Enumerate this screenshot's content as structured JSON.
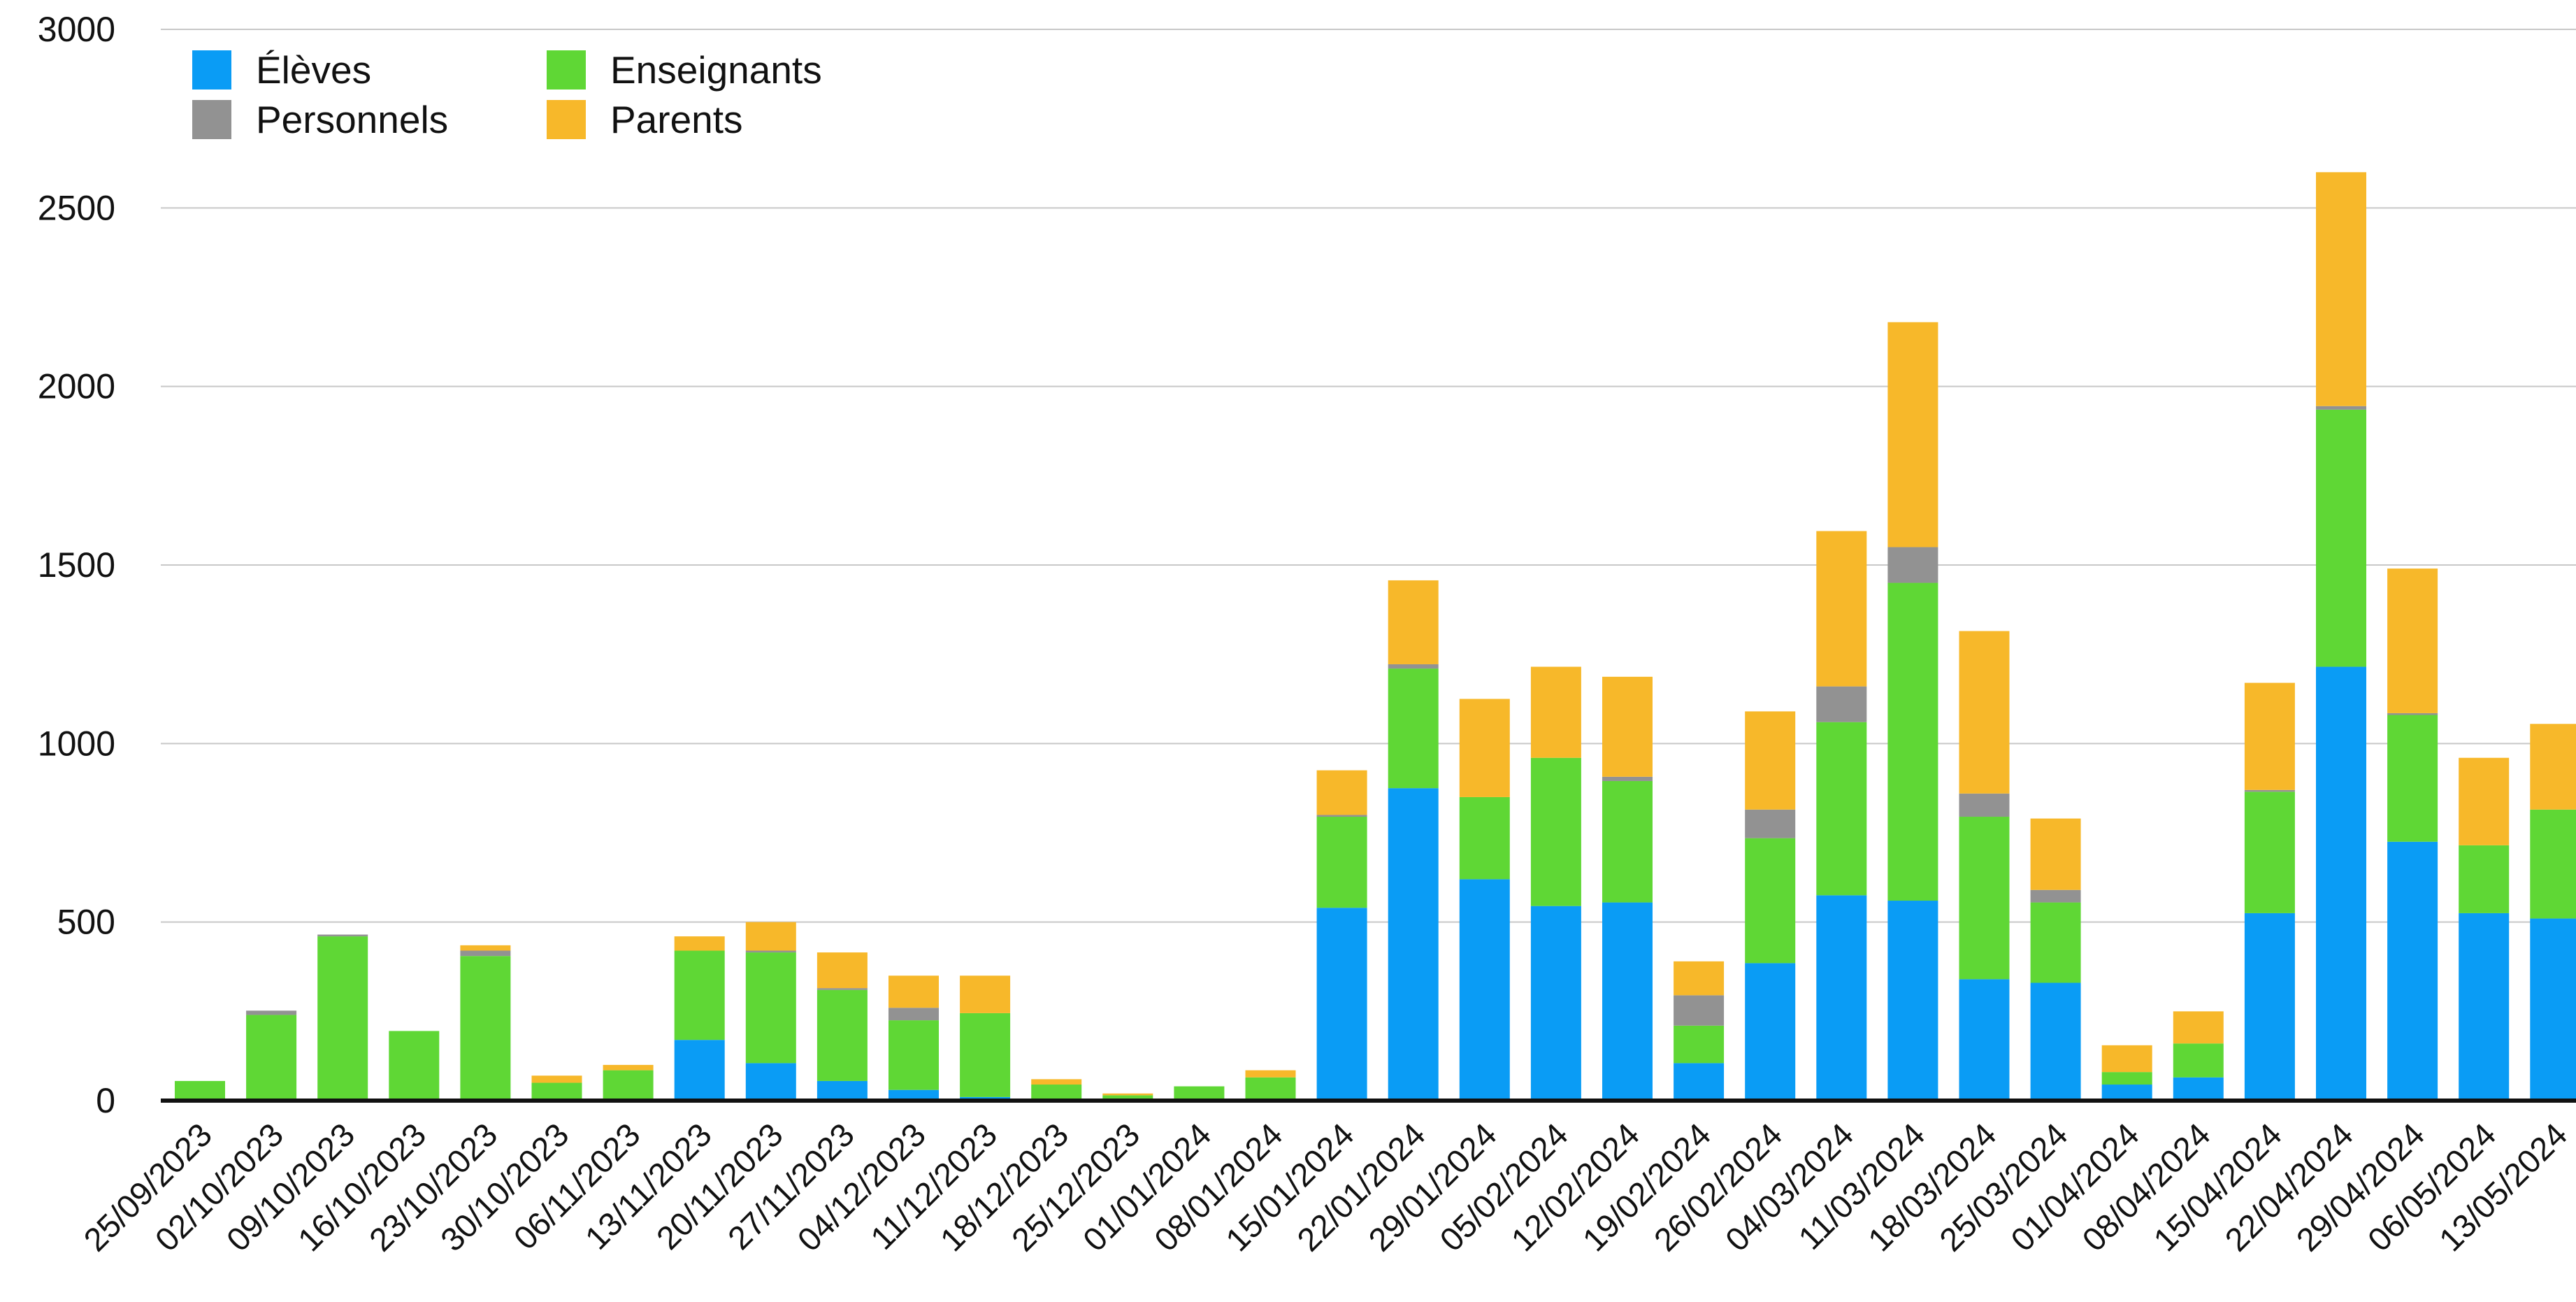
{
  "chart_data": {
    "type": "bar",
    "stacked": true,
    "title": "",
    "xlabel": "",
    "ylabel": "",
    "ylim": [
      0,
      3000
    ],
    "yticks": [
      0,
      500,
      1000,
      1500,
      2000,
      2500,
      3000
    ],
    "grid": true,
    "legend_position": "top-left",
    "categories": [
      "25/09/2023",
      "02/10/2023",
      "09/10/2023",
      "16/10/2023",
      "23/10/2023",
      "30/10/2023",
      "06/11/2023",
      "13/11/2023",
      "20/11/2023",
      "27/11/2023",
      "04/12/2023",
      "11/12/2023",
      "18/12/2023",
      "25/12/2023",
      "01/01/2024",
      "08/01/2024",
      "15/01/2024",
      "22/01/2024",
      "29/01/2024",
      "05/02/2024",
      "12/02/2024",
      "19/02/2024",
      "26/02/2024",
      "04/03/2024",
      "11/03/2024",
      "18/03/2024",
      "25/03/2024",
      "01/04/2024",
      "08/04/2024",
      "15/04/2024",
      "22/04/2024",
      "29/04/2024",
      "06/05/2024",
      "13/05/2024"
    ],
    "series": [
      {
        "name": "Élèves",
        "color": "#0a9cf5",
        "values": [
          0,
          0,
          0,
          0,
          0,
          0,
          0,
          170,
          105,
          55,
          30,
          10,
          0,
          0,
          0,
          0,
          540,
          875,
          620,
          545,
          555,
          105,
          385,
          575,
          560,
          340,
          330,
          45,
          65,
          525,
          1215,
          725,
          525,
          510
        ]
      },
      {
        "name": "Enseignants",
        "color": "#5fd735",
        "values": [
          55,
          240,
          460,
          195,
          405,
          50,
          85,
          250,
          310,
          255,
          195,
          235,
          45,
          15,
          40,
          65,
          255,
          335,
          230,
          415,
          340,
          105,
          350,
          485,
          890,
          455,
          225,
          35,
          95,
          340,
          720,
          355,
          190,
          305
        ]
      },
      {
        "name": "Personnels",
        "color": "#929292",
        "values": [
          0,
          12,
          5,
          0,
          15,
          0,
          0,
          0,
          5,
          5,
          35,
          0,
          0,
          0,
          0,
          0,
          5,
          12,
          0,
          0,
          12,
          85,
          80,
          100,
          100,
          65,
          35,
          0,
          0,
          5,
          10,
          5,
          0,
          0
        ]
      },
      {
        "name": "Parents",
        "color": "#f7b82a",
        "values": [
          0,
          0,
          0,
          0,
          15,
          20,
          15,
          40,
          80,
          100,
          90,
          105,
          15,
          5,
          0,
          20,
          125,
          235,
          275,
          255,
          280,
          95,
          275,
          435,
          630,
          455,
          200,
          75,
          90,
          300,
          655,
          405,
          245,
          240
        ]
      }
    ]
  }
}
